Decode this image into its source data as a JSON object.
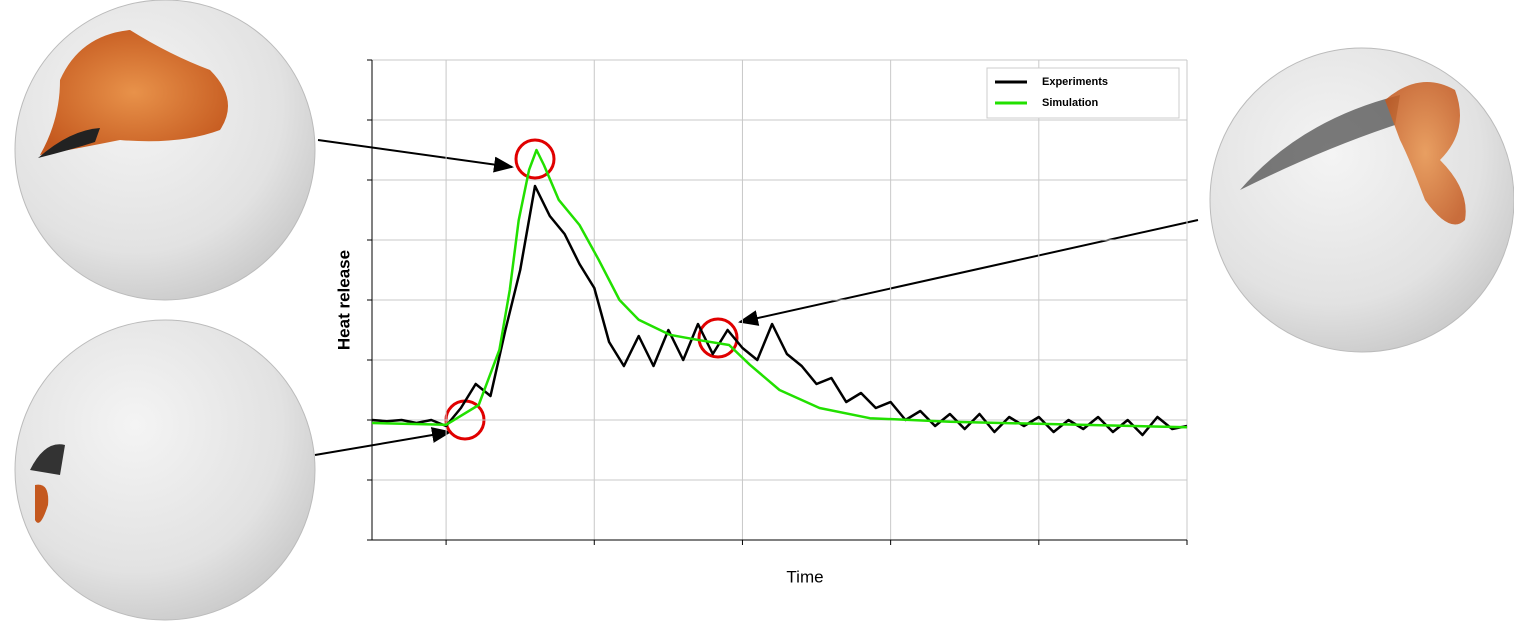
{
  "chart_data": {
    "type": "line",
    "x_label": "Time",
    "y_label": "Heat release",
    "xlim": [
      -0.5,
      5
    ],
    "ylim": [
      -2,
      6
    ],
    "xticks": [
      0,
      1,
      2,
      3,
      4,
      5
    ],
    "yticks": [
      -2,
      -1,
      0,
      1,
      2,
      3,
      4,
      5,
      6
    ],
    "grid": true,
    "legend": "upper right",
    "series": [
      {
        "name": "Experiments",
        "color": "#000000",
        "x": [
          -0.5,
          -0.4,
          -0.3,
          -0.2,
          -0.1,
          0,
          0.1,
          0.2,
          0.3,
          0.4,
          0.5,
          0.6,
          0.7,
          0.8,
          0.9,
          1.0,
          1.1,
          1.2,
          1.3,
          1.4,
          1.5,
          1.6,
          1.7,
          1.8,
          1.9,
          2.0,
          2.1,
          2.2,
          2.3,
          2.4,
          2.5,
          2.6,
          2.7,
          2.8,
          2.9,
          3.0,
          3.1,
          3.2,
          3.3,
          3.4,
          3.5,
          3.6,
          3.7,
          3.8,
          3.9,
          4.0,
          4.1,
          4.2,
          4.3,
          4.4,
          4.5,
          4.6,
          4.7,
          4.8,
          4.9,
          5.0
        ],
        "values": [
          0,
          -0.02,
          0,
          -0.05,
          0,
          -0.1,
          0.2,
          0.6,
          0.4,
          1.5,
          2.5,
          3.9,
          3.4,
          3.1,
          2.6,
          2.2,
          1.3,
          0.9,
          1.4,
          0.9,
          1.5,
          1.0,
          1.6,
          1.1,
          1.5,
          1.2,
          1.0,
          1.6,
          1.1,
          0.9,
          0.6,
          0.7,
          0.3,
          0.45,
          0.2,
          0.3,
          0,
          0.15,
          -0.1,
          0.1,
          -0.15,
          0.1,
          -0.2,
          0.05,
          -0.1,
          0.05,
          -0.2,
          0,
          -0.15,
          0.05,
          -0.2,
          0,
          -0.25,
          0.05,
          -0.15,
          -0.1
        ]
      },
      {
        "name": "Simulation",
        "color": "#22e000",
        "x": [
          -0.5,
          0,
          0.22,
          0.36,
          0.43,
          0.49,
          0.56,
          0.61,
          0.66,
          0.76,
          0.9,
          1.03,
          1.17,
          1.3,
          1.51,
          1.71,
          1.91,
          2.05,
          2.25,
          2.52,
          2.86,
          3.4,
          5
        ],
        "values": [
          -0.05,
          -0.08,
          0.25,
          1.17,
          2.17,
          3.33,
          4.17,
          4.5,
          4.25,
          3.67,
          3.25,
          2.67,
          2,
          1.67,
          1.42,
          1.33,
          1.25,
          0.92,
          0.5,
          0.2,
          0.03,
          -0.03,
          -0.12
        ]
      }
    ]
  }
}
